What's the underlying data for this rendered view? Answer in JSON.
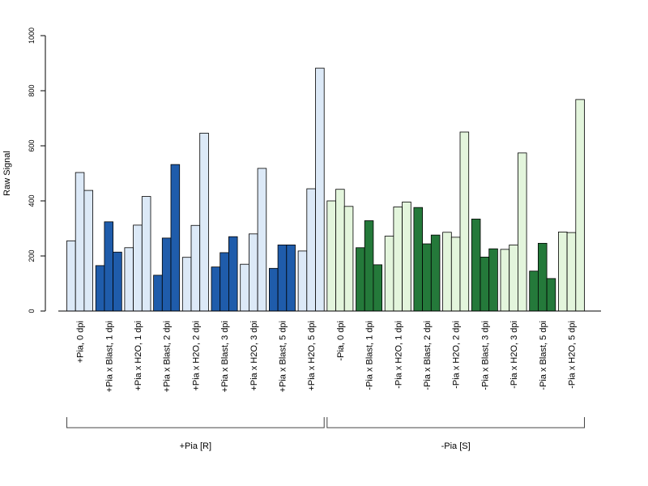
{
  "chart_data": {
    "type": "bar",
    "ylabel": "Raw Signal",
    "ylim": [
      0,
      1000
    ],
    "yticks": [
      "0",
      "200",
      "400",
      "600",
      "800",
      "1000"
    ],
    "grid": false,
    "colors": {
      "light_blue": "#dce9f7",
      "dark_blue": "#1f5cab",
      "light_green": "#e3f5dc",
      "dark_green": "#24793a"
    },
    "categories": [
      {
        "label": "+Pia, 0 dpi",
        "values": [
          255,
          503,
          438
        ],
        "color": "light_blue"
      },
      {
        "label": "+Pia x Blast, 1 dpi",
        "values": [
          165,
          324,
          214
        ],
        "color": "dark_blue"
      },
      {
        "label": "+Pia x H2O, 1 dpi",
        "values": [
          230,
          312,
          416
        ],
        "color": "light_blue"
      },
      {
        "label": "+Pia x Blast, 2 dpi",
        "values": [
          130,
          265,
          532
        ],
        "color": "dark_blue"
      },
      {
        "label": "+Pia x H2O, 2 dpi",
        "values": [
          195,
          311,
          646
        ],
        "color": "light_blue"
      },
      {
        "label": "+Pia x Blast, 3 dpi",
        "values": [
          160,
          212,
          270
        ],
        "color": "dark_blue"
      },
      {
        "label": "+Pia x H2O, 3 dpi",
        "values": [
          170,
          280,
          518
        ],
        "color": "light_blue"
      },
      {
        "label": "+Pia x Blast, 5 dpi",
        "values": [
          155,
          240,
          240
        ],
        "color": "dark_blue"
      },
      {
        "label": "+Pia x H2O, 5 dpi",
        "values": [
          218,
          444,
          882
        ],
        "color": "light_blue"
      },
      {
        "label": "-Pia, 0 dpi",
        "values": [
          400,
          442,
          380
        ],
        "color": "light_green"
      },
      {
        "label": "-Pia x Blast, 1 dpi",
        "values": [
          230,
          328,
          168
        ],
        "color": "dark_green"
      },
      {
        "label": "-Pia x H2O, 1 dpi",
        "values": [
          272,
          378,
          396
        ],
        "color": "light_green"
      },
      {
        "label": "-Pia x Blast, 2 dpi",
        "values": [
          376,
          244,
          276
        ],
        "color": "dark_green"
      },
      {
        "label": "-Pia x H2O, 2 dpi",
        "values": [
          286,
          268,
          650
        ],
        "color": "light_green"
      },
      {
        "label": "-Pia x Blast, 3 dpi",
        "values": [
          334,
          196,
          226
        ],
        "color": "dark_green"
      },
      {
        "label": "-Pia x H2O, 3 dpi",
        "values": [
          224,
          240,
          574
        ],
        "color": "light_green"
      },
      {
        "label": "-Pia x Blast, 5 dpi",
        "values": [
          145,
          246,
          118
        ],
        "color": "dark_green"
      },
      {
        "label": "-Pia x H2O, 5 dpi",
        "values": [
          287,
          285,
          768
        ],
        "color": "light_green"
      }
    ],
    "groups": [
      {
        "label": "+Pia [R]",
        "from": 0,
        "to": 8
      },
      {
        "label": "-Pia [S]",
        "from": 9,
        "to": 17
      }
    ]
  }
}
